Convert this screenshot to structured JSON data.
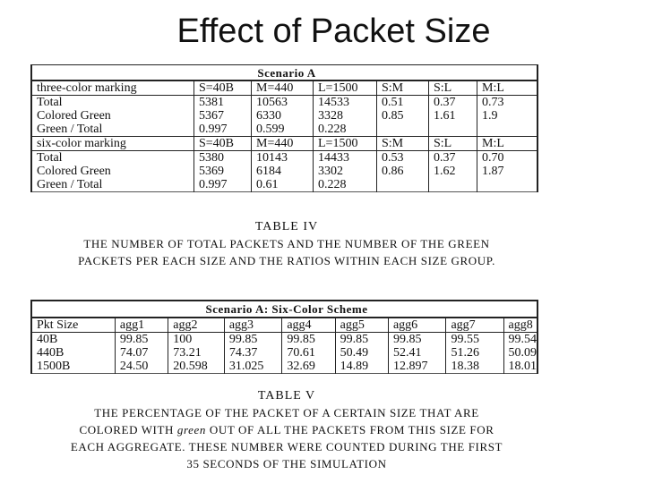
{
  "slide_title": "Effect of Packet Size",
  "table4": {
    "scenario_title": "Scenario A",
    "header_three": [
      "three-color marking",
      "S=40B",
      "M=440",
      "L=1500",
      "S:M",
      "S:L",
      "M:L"
    ],
    "rows_three": [
      [
        "Total",
        "5381",
        "10563",
        "14533",
        "0.51",
        "0.37",
        "0.73"
      ],
      [
        "Colored Green",
        "5367",
        "6330",
        "3328",
        "0.85",
        "1.61",
        "1.9"
      ],
      [
        "Green / Total",
        "0.997",
        "0.599",
        "0.228",
        "",
        "",
        ""
      ]
    ],
    "header_six": [
      "six-color marking",
      "S=40B",
      "M=440",
      "L=1500",
      "S:M",
      "S:L",
      "M:L"
    ],
    "rows_six": [
      [
        "Total",
        "5380",
        "10143",
        "14433",
        "0.53",
        "0.37",
        "0.70"
      ],
      [
        "Colored Green",
        "5369",
        "6184",
        "3302",
        "0.86",
        "1.62",
        "1.87"
      ],
      [
        "Green / Total",
        "0.997",
        "0.61",
        "0.228",
        "",
        "",
        ""
      ]
    ],
    "caption_label": "TABLE IV",
    "caption_lines": [
      "The number of total packets and the number of the green",
      "packets per each size and the ratios within each size group."
    ]
  },
  "table5": {
    "scenario_title": "Scenario A: Six-Color Scheme",
    "header": [
      "Pkt Size",
      "agg1",
      "agg2",
      "agg3",
      "agg4",
      "agg5",
      "agg6",
      "agg7",
      "agg8"
    ],
    "rows": [
      [
        "40B",
        "99.85",
        "100",
        "99.85",
        "99.85",
        "99.85",
        "99.85",
        "99.55",
        "99.54"
      ],
      [
        "440B",
        "74.07",
        "73.21",
        "74.37",
        "70.61",
        "50.49",
        "52.41",
        "51.26",
        "50.09"
      ],
      [
        "1500B",
        "24.50",
        "20.598",
        "31.025",
        "32.69",
        "14.89",
        "12.897",
        "18.38",
        "18.01"
      ]
    ],
    "caption_label": "TABLE V",
    "caption_line1_pre": "The percentage of the packet of a certain size that are",
    "caption_line2_pre": "colored with",
    "caption_line2_em": "green",
    "caption_line2_post": "out of all the packets from this size for",
    "caption_line3": "each aggregate. These number were counted during the first",
    "caption_line4": "35 seconds of the simulation"
  }
}
